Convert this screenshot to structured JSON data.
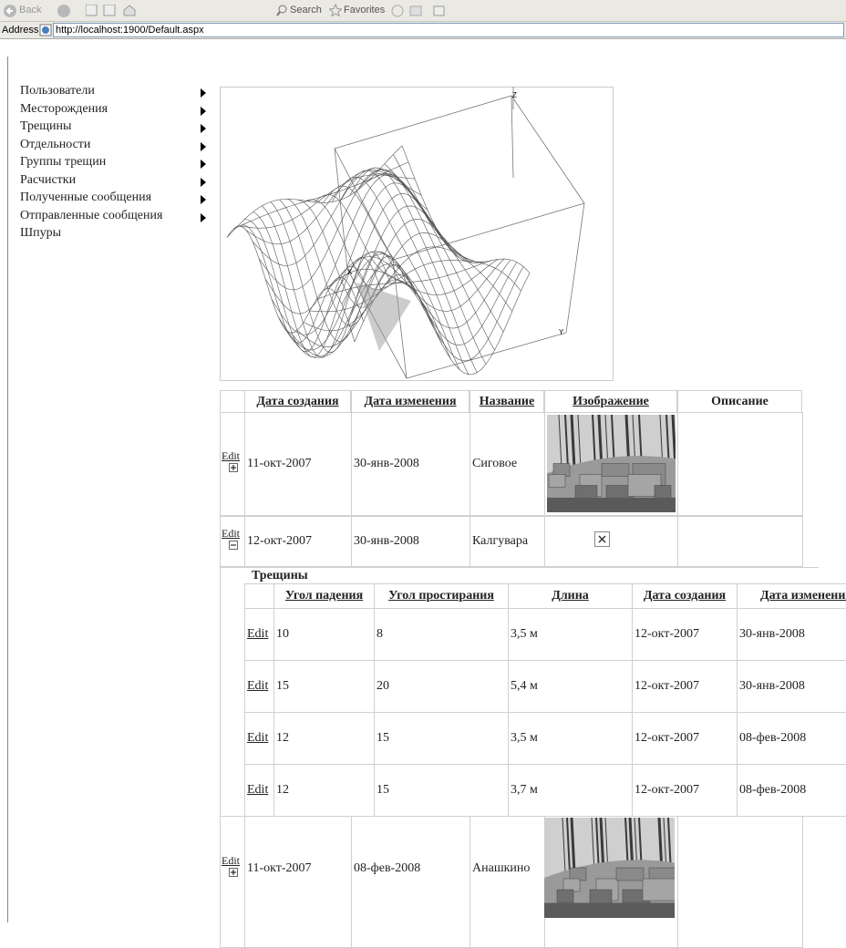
{
  "toolbar": {
    "back": "Back",
    "search": "Search",
    "favorites": "Favorites"
  },
  "address": {
    "label": "Address",
    "url": "http://localhost:1900/Default.aspx"
  },
  "menu": [
    "Пользователи",
    "Месторождения",
    "Трещины",
    "Отдельности",
    "Группы трещин",
    "Расчистки",
    "Полученные сообщения",
    "Отправленные сообщения",
    "Шпуры"
  ],
  "plot_axes": [
    "Z",
    "X",
    "Y"
  ],
  "main_table": {
    "headers": [
      "Дата создания",
      "Дата изменения",
      "Название",
      "Изображение",
      "Описание"
    ],
    "rows": [
      {
        "edit": "Edit",
        "created": "11-окт-2007",
        "modified": "30-янв-2008",
        "name": "Сиговое"
      },
      {
        "edit": "Edit",
        "created": "12-окт-2007",
        "modified": "30-янв-2008",
        "name": "Калгувара"
      },
      {
        "edit": "Edit",
        "created": "11-окт-2007",
        "modified": "08-фев-2008",
        "name": "Анашкино"
      }
    ]
  },
  "cracks_table": {
    "title": "Трещины",
    "headers": [
      "Угол падения",
      "Угол простирания",
      "Длина",
      "Дата создания",
      "Дата изменения"
    ],
    "rows": [
      {
        "edit": "Edit",
        "cells": [
          "10",
          "8",
          "3,5 м",
          "12-окт-2007",
          "30-янв-2008"
        ]
      },
      {
        "edit": "Edit",
        "cells": [
          "15",
          "20",
          "5,4 м",
          "12-окт-2007",
          "30-янв-2008"
        ]
      },
      {
        "edit": "Edit",
        "cells": [
          "12",
          "15",
          "3,5 м",
          "12-окт-2007",
          "08-фев-2008"
        ]
      },
      {
        "edit": "Edit",
        "cells": [
          "12",
          "15",
          "3,7 м",
          "12-окт-2007",
          "08-фев-2008"
        ]
      }
    ]
  }
}
